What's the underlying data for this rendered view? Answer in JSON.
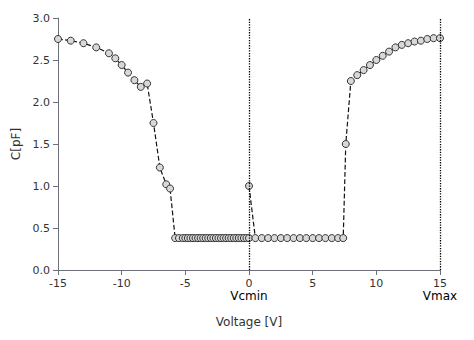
{
  "chart_data": {
    "type": "line",
    "xlabel": "Voltage [V]",
    "ylabel": "C[pF]",
    "xlim": [
      -15,
      15
    ],
    "ylim": [
      0,
      3.0
    ],
    "xticks": [
      -15,
      -10,
      -5,
      0,
      5,
      10,
      15
    ],
    "yticks": [
      {
        "value": 0.0,
        "label": "0.0"
      },
      {
        "value": 0.5,
        "label": "0.5"
      },
      {
        "value": 1.0,
        "label": "1.0"
      },
      {
        "value": 1.5,
        "label": "1.5"
      },
      {
        "value": 2.0,
        "label": "2.0"
      },
      {
        "value": 2.5,
        "label": "2.5"
      },
      {
        "value": 3.0,
        "label": "3.0"
      }
    ],
    "grid": false,
    "series": [
      {
        "color": "#111111",
        "line_style": "dashed",
        "marker": "circle",
        "x": [
          -15,
          -14,
          -13,
          -12,
          -11,
          -10.5,
          -10,
          -9.5,
          -9,
          -8.5,
          -8,
          -7.5,
          -7,
          -6.5,
          -6.2,
          -5.8,
          -5.5,
          -5.2,
          -5.0,
          -4.8,
          -4.6,
          -4.4,
          -4.2,
          -4.0,
          -3.8,
          -3.6,
          -3.4,
          -3.2,
          -3.0,
          -2.8,
          -2.6,
          -2.4,
          -2.2,
          -2.0,
          -1.8,
          -1.6,
          -1.4,
          -1.2,
          -1.0,
          -0.8,
          -0.6,
          -0.4,
          -0.2,
          0.0
        ],
        "values": [
          2.75,
          2.73,
          2.7,
          2.65,
          2.58,
          2.52,
          2.44,
          2.35,
          2.26,
          2.18,
          2.22,
          1.75,
          1.22,
          1.02,
          0.97,
          0.38,
          0.38,
          0.38,
          0.38,
          0.38,
          0.38,
          0.38,
          0.38,
          0.38,
          0.38,
          0.38,
          0.38,
          0.38,
          0.38,
          0.38,
          0.38,
          0.38,
          0.38,
          0.38,
          0.38,
          0.38,
          0.38,
          0.38,
          0.38,
          0.38,
          0.38,
          0.38,
          0.38,
          0.38
        ]
      },
      {
        "color": "#111111",
        "line_style": "dashed",
        "marker": "circle",
        "x": [
          0.0,
          0.5,
          1.0,
          1.5,
          2.0,
          2.5,
          3.0,
          3.5,
          4.0,
          4.5,
          5.0,
          5.5,
          6.0,
          6.5,
          7.0,
          7.4,
          7.6,
          8.0,
          8.5,
          9.0,
          9.5,
          10.0,
          10.5,
          11.0,
          11.5,
          12.0,
          12.5,
          13.0,
          13.5,
          14.0,
          14.5,
          15.0
        ],
        "values": [
          1.0,
          0.38,
          0.38,
          0.38,
          0.38,
          0.38,
          0.38,
          0.38,
          0.38,
          0.38,
          0.38,
          0.38,
          0.38,
          0.38,
          0.38,
          0.38,
          1.5,
          2.25,
          2.32,
          2.38,
          2.44,
          2.5,
          2.55,
          2.6,
          2.65,
          2.68,
          2.7,
          2.72,
          2.73,
          2.75,
          2.76,
          2.76
        ]
      }
    ],
    "annotations": [
      {
        "text": "Vcmin",
        "x": 0
      },
      {
        "text": "Vmax",
        "x": 15
      }
    ]
  }
}
